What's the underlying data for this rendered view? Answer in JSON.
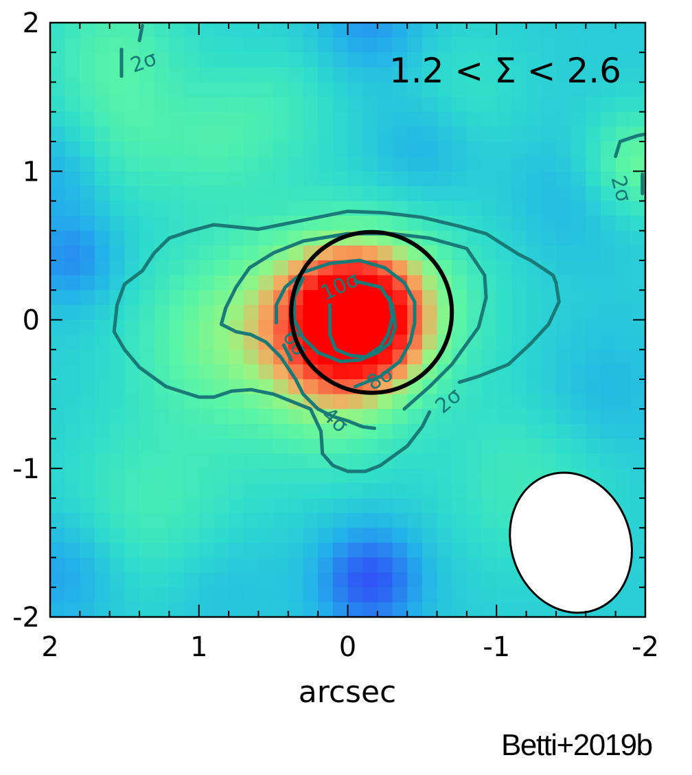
{
  "chart_data": {
    "type": "heatmap",
    "title": "",
    "xlabel": "arcsec",
    "ylabel": "",
    "xlim": [
      2,
      -2
    ],
    "ylim": [
      -2,
      2
    ],
    "x_ticks": [
      "2",
      "1",
      "0",
      "-1",
      "-2"
    ],
    "y_ticks": [
      "2",
      "1",
      "0",
      "-1",
      "-2"
    ],
    "annotation": "1.2 < Σ < 2.6",
    "colormap": "rainbow",
    "grid": false,
    "map_grid": {
      "nx": 40,
      "ny": 40,
      "background_level": 0.38,
      "peak": {
        "x": -0.05,
        "y": 0.0,
        "level": 1.0
      },
      "clumps": [
        {
          "x": -0.05,
          "y": 0.0,
          "amp": 0.68,
          "sigma": 0.33
        },
        {
          "x": 0.4,
          "y": 0.0,
          "amp": 0.18,
          "sigma": 0.5
        },
        {
          "x": 0.95,
          "y": -0.15,
          "amp": 0.12,
          "sigma": 0.4
        },
        {
          "x": -0.5,
          "y": 0.15,
          "amp": 0.1,
          "sigma": 0.45
        },
        {
          "x": 0.1,
          "y": -0.6,
          "amp": 0.1,
          "sigma": 0.35
        },
        {
          "x": 1.55,
          "y": 1.8,
          "amp": 0.14,
          "sigma": 0.35
        },
        {
          "x": 0.45,
          "y": 1.45,
          "amp": 0.08,
          "sigma": 0.3
        },
        {
          "x": 1.55,
          "y": 1.15,
          "amp": 0.1,
          "sigma": 0.3
        },
        {
          "x": -1.95,
          "y": 1.05,
          "amp": 0.2,
          "sigma": 0.25
        },
        {
          "x": 0.9,
          "y": 1.2,
          "amp": 0.1,
          "sigma": 0.3
        },
        {
          "x": 1.3,
          "y": -1.3,
          "amp": 0.12,
          "sigma": 0.45
        },
        {
          "x": -1.2,
          "y": -1.1,
          "amp": 0.1,
          "sigma": 0.4
        },
        {
          "x": -0.8,
          "y": 1.55,
          "amp": 0.06,
          "sigma": 0.3
        },
        {
          "x": 1.85,
          "y": 0.4,
          "amp": -0.14,
          "sigma": 0.22
        },
        {
          "x": -0.15,
          "y": -1.75,
          "amp": -0.24,
          "sigma": 0.25
        },
        {
          "x": 1.9,
          "y": -1.7,
          "amp": -0.12,
          "sigma": 0.28
        },
        {
          "x": 1.9,
          "y": 1.0,
          "amp": -0.1,
          "sigma": 0.25
        },
        {
          "x": -0.15,
          "y": 2.0,
          "amp": -0.12,
          "sigma": 0.25
        },
        {
          "x": -0.5,
          "y": 1.15,
          "amp": -0.08,
          "sigma": 0.25
        },
        {
          "x": -1.5,
          "y": 0.8,
          "amp": -0.06,
          "sigma": 0.3
        },
        {
          "x": -1.7,
          "y": -0.5,
          "amp": -0.06,
          "sigma": 0.3
        },
        {
          "x": 0.9,
          "y": -1.75,
          "amp": -0.06,
          "sigma": 0.3
        }
      ]
    },
    "contours": [
      {
        "label": "2σ",
        "points": [
          [
            0.6,
            0.61
          ],
          [
            0.9,
            0.64
          ],
          [
            1.05,
            0.6
          ],
          [
            1.2,
            0.55
          ],
          [
            1.3,
            0.45
          ],
          [
            1.38,
            0.33
          ],
          [
            1.5,
            0.24
          ],
          [
            1.55,
            0.1
          ],
          [
            1.57,
            -0.08
          ],
          [
            1.5,
            -0.2
          ],
          [
            1.4,
            -0.32
          ],
          [
            1.22,
            -0.45
          ],
          [
            1.0,
            -0.52
          ],
          [
            0.9,
            -0.52
          ],
          [
            0.78,
            -0.48
          ],
          [
            0.65,
            -0.47
          ],
          [
            0.5,
            -0.5
          ],
          [
            0.35,
            -0.56
          ],
          [
            0.25,
            -0.6
          ],
          [
            0.18,
            -0.75
          ],
          [
            0.17,
            -0.9
          ],
          [
            0.1,
            -0.98
          ],
          [
            0.0,
            -1.02
          ],
          [
            -0.12,
            -1.02
          ],
          [
            -0.22,
            -0.98
          ],
          [
            -0.4,
            -0.85
          ],
          [
            -0.5,
            -0.72
          ],
          [
            -0.55,
            -0.62
          ]
        ],
        "points2": [
          [
            -0.75,
            -0.42
          ],
          [
            -0.88,
            -0.38
          ],
          [
            -1.08,
            -0.3
          ],
          [
            -1.23,
            -0.16
          ],
          [
            -1.35,
            -0.03
          ],
          [
            -1.42,
            0.12
          ],
          [
            -1.4,
            0.25
          ],
          [
            -1.38,
            0.3
          ],
          [
            -1.23,
            0.4
          ],
          [
            -1.15,
            0.44
          ],
          [
            -0.93,
            0.58
          ],
          [
            -0.75,
            0.63
          ],
          [
            -0.5,
            0.69
          ],
          [
            -0.25,
            0.72
          ],
          [
            0.0,
            0.73
          ],
          [
            0.3,
            0.67
          ],
          [
            0.6,
            0.61
          ]
        ]
      },
      {
        "label": "4σ",
        "points": [
          [
            0.0,
            0.58
          ],
          [
            0.3,
            0.53
          ],
          [
            0.5,
            0.45
          ],
          [
            0.66,
            0.35
          ],
          [
            0.75,
            0.22
          ],
          [
            0.82,
            0.08
          ],
          [
            0.85,
            -0.03
          ],
          [
            0.75,
            -0.08
          ],
          [
            0.65,
            -0.1
          ],
          [
            0.55,
            -0.15
          ],
          [
            0.45,
            -0.25
          ],
          [
            0.35,
            -0.4
          ],
          [
            0.3,
            -0.5
          ],
          [
            0.2,
            -0.6
          ],
          [
            0.1,
            -0.65
          ],
          [
            0.0,
            -0.68
          ],
          [
            -0.1,
            -0.72
          ],
          [
            -0.18,
            -0.73
          ]
        ],
        "points2": [
          [
            -0.38,
            -0.6
          ],
          [
            -0.55,
            -0.45
          ],
          [
            -0.7,
            -0.3
          ],
          [
            -0.88,
            -0.05
          ],
          [
            -0.93,
            0.15
          ],
          [
            -0.92,
            0.3
          ],
          [
            -0.8,
            0.48
          ],
          [
            -0.55,
            0.55
          ],
          [
            -0.3,
            0.58
          ],
          [
            0.0,
            0.58
          ]
        ]
      },
      {
        "label": "6σ",
        "points": [
          [
            0.48,
            -0.02
          ],
          [
            0.48,
            0.1
          ],
          [
            0.42,
            0.22
          ],
          [
            0.3,
            0.32
          ],
          [
            0.12,
            0.38
          ],
          [
            -0.08,
            0.4
          ],
          [
            -0.25,
            0.35
          ],
          [
            -0.38,
            0.25
          ],
          [
            -0.45,
            0.12
          ],
          [
            -0.45,
            -0.02
          ],
          [
            -0.42,
            -0.15
          ],
          [
            -0.35,
            -0.28
          ],
          [
            -0.22,
            -0.38
          ],
          [
            -0.05,
            -0.45
          ]
        ],
        "points2": [
          [
            0.43,
            -0.17
          ],
          [
            0.38,
            -0.27
          ]
        ]
      },
      {
        "label": "8σ",
        "points": [
          [
            0.3,
            0.28
          ],
          [
            0.36,
            0.15
          ],
          [
            0.36,
            0.0
          ],
          [
            0.3,
            -0.12
          ],
          [
            0.2,
            -0.22
          ],
          [
            0.05,
            -0.28
          ],
          [
            -0.08,
            -0.27
          ],
          [
            -0.2,
            -0.22
          ],
          [
            -0.28,
            -0.16
          ],
          [
            -0.32,
            -0.05
          ],
          [
            -0.3,
            0.1
          ],
          [
            -0.22,
            0.22
          ],
          [
            -0.05,
            0.26
          ]
        ],
        "points2": []
      },
      {
        "label": "10σ",
        "points": [
          [
            -0.28,
            0.15
          ],
          [
            -0.3,
            0.02
          ],
          [
            -0.27,
            -0.1
          ],
          [
            -0.22,
            -0.18
          ],
          [
            -0.12,
            -0.25
          ],
          [
            -0.02,
            -0.24
          ],
          [
            0.08,
            -0.2
          ],
          [
            0.12,
            -0.1
          ],
          [
            0.12,
            0.0
          ],
          [
            0.12,
            0.1
          ]
        ],
        "points2": []
      },
      {
        "label": "2σ",
        "points": [
          [
            1.52,
            1.64
          ],
          [
            1.52,
            1.82
          ]
        ],
        "points2": [
          [
            1.4,
            1.88
          ],
          [
            1.38,
            1.98
          ]
        ]
      },
      {
        "label": "2σ",
        "points": [
          [
            -1.8,
            1.1
          ],
          [
            -1.83,
            1.2
          ],
          [
            -1.95,
            1.24
          ],
          [
            -2.0,
            1.25
          ]
        ],
        "points2": [
          [
            -1.98,
            0.85
          ],
          [
            -1.98,
            0.98
          ]
        ]
      }
    ],
    "contour_label_positions": [
      {
        "text": "2σ",
        "x": -0.68,
        "y": -0.55,
        "angle": -40
      },
      {
        "text": "4σ",
        "x": 0.09,
        "y": -0.68,
        "angle": 40
      },
      {
        "text": "6σ",
        "x": 0.36,
        "y": -0.16,
        "angle": 55
      },
      {
        "text": "8σ",
        "x": -0.22,
        "y": -0.4,
        "angle": -30
      },
      {
        "text": "10σ",
        "x": 0.05,
        "y": 0.22,
        "angle": -25
      },
      {
        "text": "2σ",
        "x": 1.37,
        "y": 1.73,
        "angle": -20
      },
      {
        "text": "2σ",
        "x": -1.83,
        "y": 0.88,
        "angle": 75
      }
    ],
    "aperture_circle": {
      "x": -0.16,
      "y": 0.05,
      "radius": 0.54
    },
    "beam_ellipse": {
      "x": -1.5,
      "y": -1.5,
      "rx": 0.4,
      "ry": 0.48,
      "angle_deg": -20
    },
    "colors": {
      "contour": "#1a7a78",
      "frame": "#000000",
      "beam_fill": "#ffffff"
    }
  },
  "credit": "Betti+2019b"
}
